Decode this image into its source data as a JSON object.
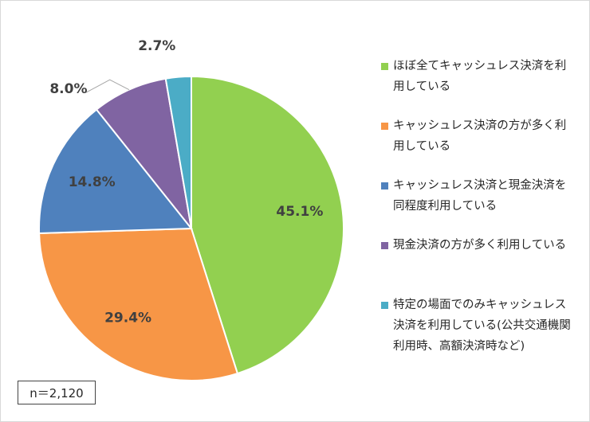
{
  "chart_data": {
    "type": "pie",
    "categories": [
      "ほぼ全てキャッシュレス決済を利用している",
      "キャッシュレス決済の方が多く利用している",
      "キャッシュレス決済と現金決済を同程度利用している",
      "現金決済の方が多く利用している",
      "特定の場面でのみキャッシュレス決済を利用している(公共交通機関利用時、高額決済時など)"
    ],
    "values": [
      45.1,
      29.4,
      14.8,
      8.0,
      2.7
    ],
    "value_labels": [
      "45.1%",
      "29.4%",
      "14.8%",
      "8.0%",
      "2.7%"
    ],
    "colors": [
      "#92d050",
      "#f79646",
      "#4f81bd",
      "#8064a2",
      "#4bacc6"
    ],
    "legend": "right",
    "note": "n＝2,120"
  }
}
